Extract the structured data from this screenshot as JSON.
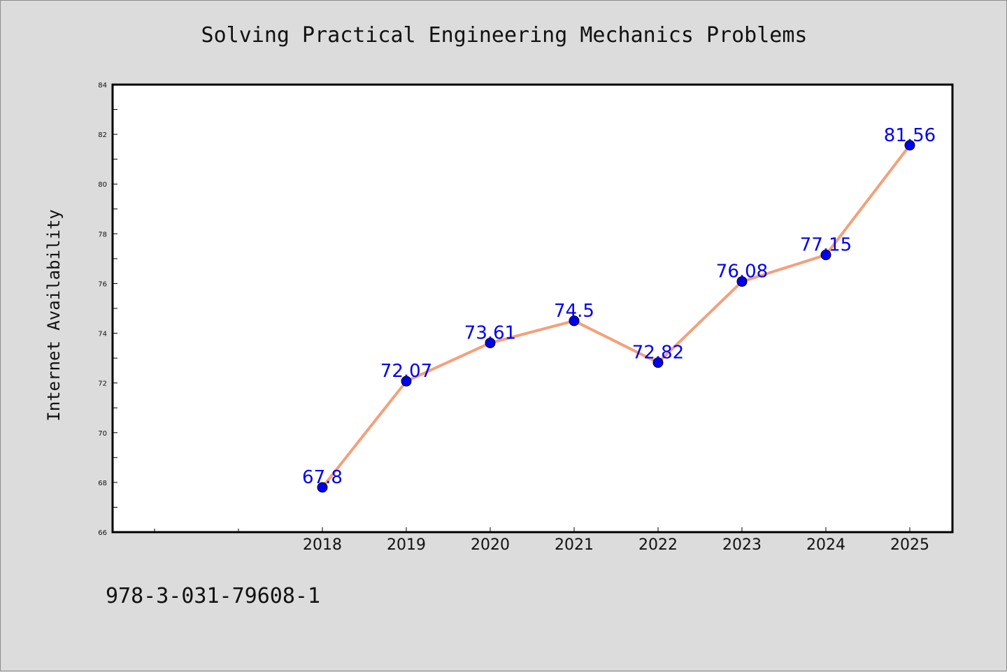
{
  "chart_data": {
    "type": "line",
    "title": "Solving Practical Engineering Mechanics Problems",
    "xlabel": "",
    "ylabel": "Internet Availability",
    "categories": [
      "2018",
      "2019",
      "2020",
      "2021",
      "2022",
      "2023",
      "2024",
      "2025"
    ],
    "series": [
      {
        "values": [
          67.8,
          72.07,
          73.61,
          74.5,
          72.82,
          76.08,
          77.15,
          81.56
        ]
      }
    ],
    "data_labels": [
      "67.8",
      "72.07",
      "73.61",
      "74.5",
      "72.82",
      "76.08",
      "77.15",
      "81.56"
    ],
    "ylim": [
      66,
      84
    ],
    "y_ticks": [
      "66",
      "68",
      "70",
      "72",
      "74",
      "76",
      "78",
      "80",
      "82",
      "84"
    ],
    "grid": false,
    "line_color": "#f4a07a",
    "marker_color": "#0000ee",
    "label_color": "#0000ee"
  },
  "footer": {
    "isbn": "978-3-031-79608-1"
  }
}
